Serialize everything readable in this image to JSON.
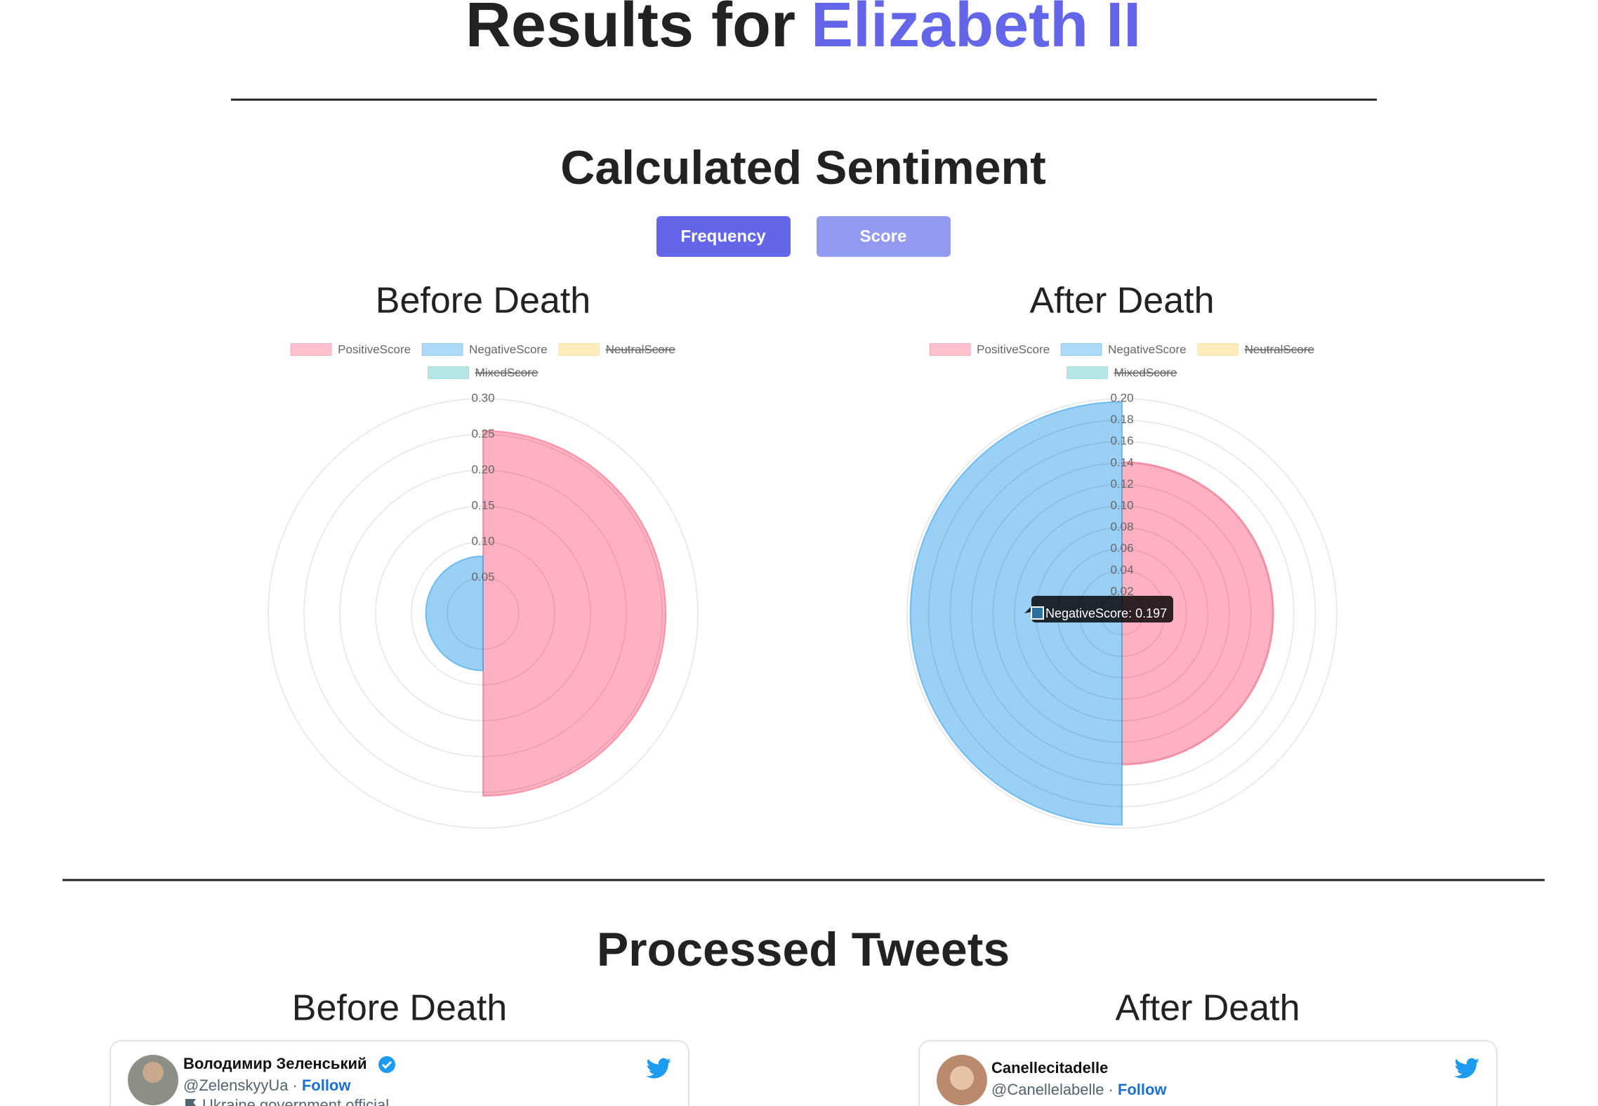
{
  "header": {
    "title_prefix": "Results for",
    "title_subject": "Elizabeth II"
  },
  "sentiment": {
    "title": "Calculated Sentiment",
    "buttons": [
      "Frequency",
      "Score"
    ]
  },
  "chart_data": [
    {
      "type": "polarArea",
      "title": "Before Death",
      "categories": [
        "PositiveScore",
        "NegativeScore",
        "NeutralScore",
        "MixedScore"
      ],
      "values": [
        0.255,
        0.08,
        null,
        null
      ],
      "colors": [
        "#ff6384",
        "#36a2eb",
        "#ffcd56",
        "#4bc0c0"
      ],
      "hidden": [
        false,
        false,
        true,
        true
      ],
      "ylim": [
        0,
        0.3
      ],
      "yticks": [
        0.05,
        {
          "value": 0.1,
          "label": "0.10"
        },
        0.15,
        {
          "value": 0.2,
          "label": "0.20"
        },
        0.25,
        {
          "value": 0.3,
          "label": "0.30"
        }
      ]
    },
    {
      "type": "polarArea",
      "title": "After Death",
      "categories": [
        "PositiveScore",
        "NegativeScore",
        "NeutralScore",
        "MixedScore"
      ],
      "values": [
        0.141,
        0.197,
        null,
        null
      ],
      "colors": [
        "#ff6384",
        "#36a2eb",
        "#ffcd56",
        "#4bc0c0"
      ],
      "hidden": [
        false,
        false,
        true,
        true
      ],
      "ylim": [
        0,
        0.2
      ],
      "yticks": [
        0.02,
        0.04,
        0.06,
        0.08,
        {
          "value": 0.1,
          "label": "0.10"
        },
        0.12,
        0.14,
        0.16,
        0.18,
        {
          "value": 0.2,
          "label": "0.20"
        }
      ],
      "tooltip": "NegativeScore: 0.197"
    }
  ],
  "tweets": {
    "title": "Processed Tweets",
    "columns": [
      {
        "title": "Before Death",
        "card": {
          "name": "Володимир Зеленський",
          "handle": "@ZelenskyyUa",
          "separator": "·",
          "follow": "Follow",
          "bio": "Ukraine government official"
        }
      },
      {
        "title": "After Death",
        "card": {
          "name": "Canellecitadelle",
          "handle": "@Canellelabelle",
          "separator": "·",
          "follow": "Follow"
        }
      }
    ]
  }
}
